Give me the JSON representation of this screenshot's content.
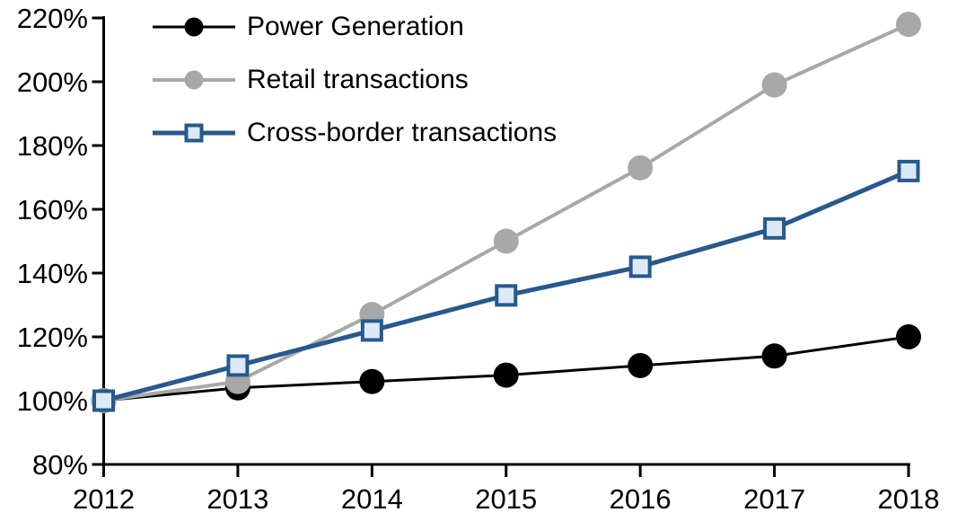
{
  "chart_data": {
    "type": "line",
    "title": "",
    "xlabel": "",
    "ylabel": "",
    "x_categories": [
      "2012",
      "2013",
      "2014",
      "2015",
      "2016",
      "2017",
      "2018"
    ],
    "ylim": [
      80,
      220
    ],
    "y_ticks": [
      {
        "value": 80,
        "label": "80%"
      },
      {
        "value": 100,
        "label": "100%"
      },
      {
        "value": 120,
        "label": "120%"
      },
      {
        "value": 140,
        "label": "140%"
      },
      {
        "value": 160,
        "label": "160%"
      },
      {
        "value": 180,
        "label": "180%"
      },
      {
        "value": 200,
        "label": "200%"
      },
      {
        "value": 220,
        "label": "220%"
      }
    ],
    "grid": false,
    "legend_position": "top-left",
    "axis_color": "#000000",
    "background_color": "#FFFFFF",
    "series": [
      {
        "name": "Power Generation",
        "marker": "circle",
        "line_color": "#000000",
        "marker_fill": "#000000",
        "line_width": 3,
        "values": [
          100,
          104,
          106,
          108,
          111,
          114,
          120
        ]
      },
      {
        "name": "Retail transactions",
        "marker": "circle",
        "line_color": "#A8A8A8",
        "marker_fill": "#A8A8A8",
        "line_width": 4,
        "values": [
          100,
          106,
          127,
          150,
          173,
          199,
          218
        ]
      },
      {
        "name": "Cross-border transactions",
        "marker": "square",
        "line_color": "#27598C",
        "marker_fill": "#DCE9F6",
        "line_width": 5,
        "values": [
          100,
          111,
          122,
          133,
          142,
          154,
          172
        ]
      }
    ]
  }
}
